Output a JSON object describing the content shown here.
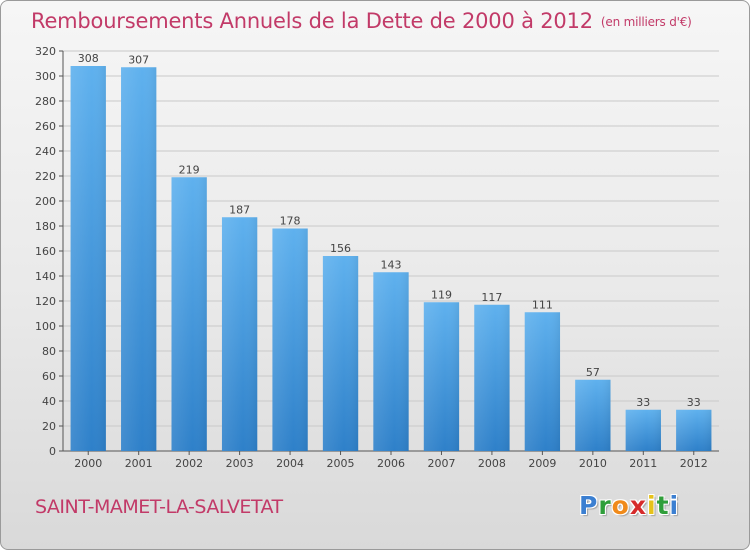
{
  "header": {
    "title": "Remboursements Annuels de la Dette de 2000 à 2012",
    "unit_note": "(en milliers d'€)"
  },
  "footer": {
    "commune": "SAINT-MAMET-LA-SALVETAT",
    "brand": "Proxiti",
    "brand_letters": [
      {
        "char": "P",
        "color": "#3b7fd1"
      },
      {
        "char": "r",
        "color": "#2f9e3a"
      },
      {
        "char": "o",
        "color": "#f08a1a"
      },
      {
        "char": "x",
        "color": "#d62a2a"
      },
      {
        "char": "i",
        "color": "#e6c21a"
      },
      {
        "char": "t",
        "color": "#2f9e3a"
      },
      {
        "char": "i",
        "color": "#3b7fd1"
      }
    ]
  },
  "chart_data": {
    "type": "bar",
    "categories": [
      "2000",
      "2001",
      "2002",
      "2003",
      "2004",
      "2005",
      "2006",
      "2007",
      "2008",
      "2009",
      "2010",
      "2011",
      "2012"
    ],
    "values": [
      308,
      307,
      219,
      187,
      178,
      156,
      143,
      119,
      117,
      111,
      57,
      33,
      33
    ],
    "ylim": [
      0,
      320
    ],
    "yticks": [
      0,
      20,
      40,
      60,
      80,
      100,
      120,
      140,
      160,
      180,
      200,
      220,
      240,
      260,
      280,
      300,
      320
    ],
    "grid": true,
    "bar_color": "#3a8fd8",
    "bar_color_light": "#5eb0ec",
    "data_labels": true
  }
}
